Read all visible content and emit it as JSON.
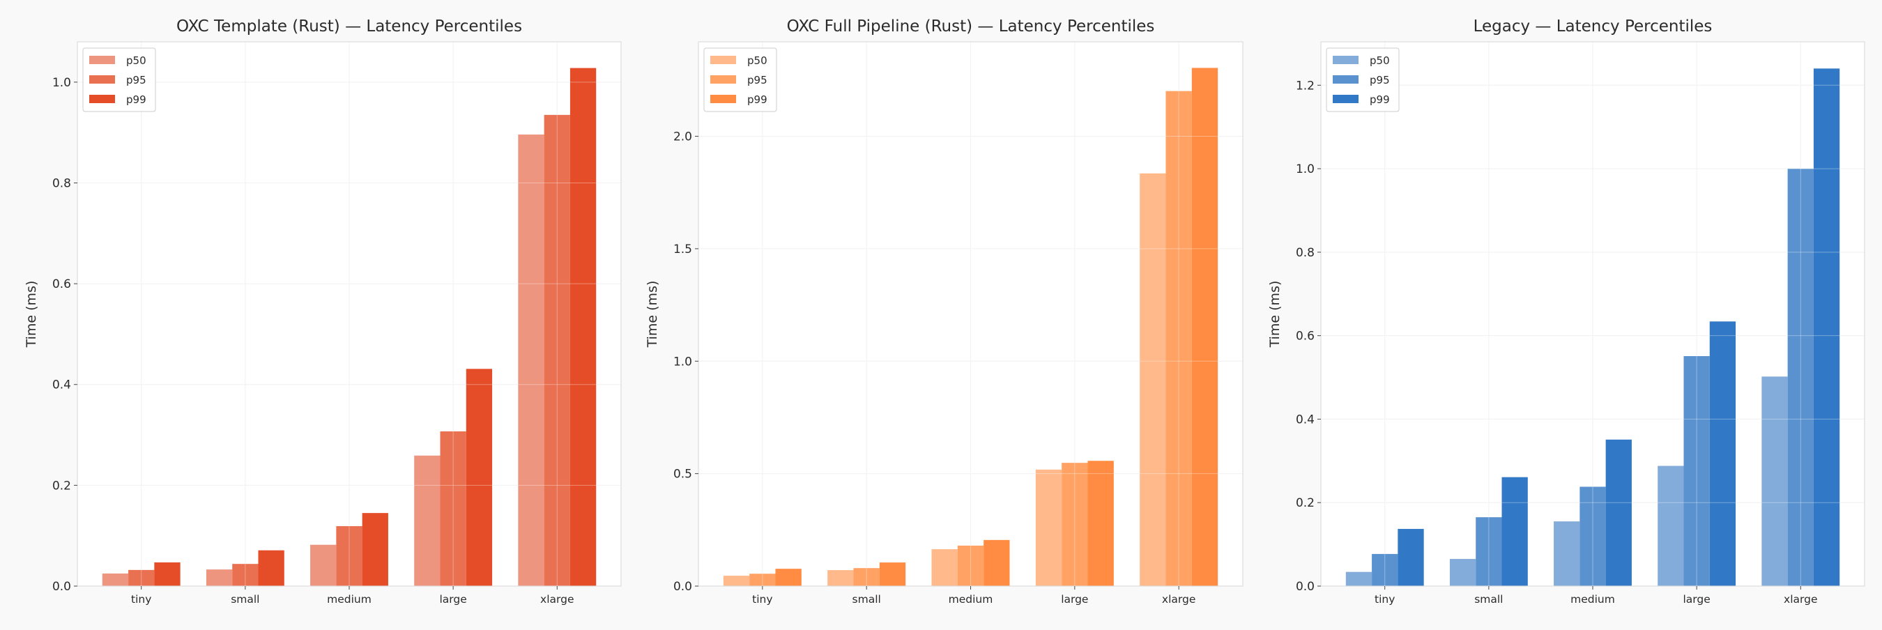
{
  "chart_data": [
    {
      "type": "bar",
      "title": "OXC Template (Rust) — Latency Percentiles",
      "xlabel": "",
      "ylabel": "Time (ms)",
      "categories": [
        "tiny",
        "small",
        "medium",
        "large",
        "xlarge"
      ],
      "ylim": [
        0,
        1.08
      ],
      "yticks": [
        0.0,
        0.2,
        0.4,
        0.6,
        0.8,
        1.0
      ],
      "ytick_labels": [
        "0.0",
        "0.2",
        "0.4",
        "0.6",
        "0.8",
        "1.0"
      ],
      "grid": true,
      "legend": "top-left",
      "series": [
        {
          "name": "p50",
          "color": "#EE9580",
          "values": [
            0.025,
            0.033,
            0.082,
            0.259,
            0.896
          ]
        },
        {
          "name": "p95",
          "color": "#EA7052",
          "values": [
            0.032,
            0.044,
            0.119,
            0.307,
            0.935
          ]
        },
        {
          "name": "p99",
          "color": "#E54D29",
          "values": [
            0.047,
            0.071,
            0.145,
            0.431,
            1.028
          ]
        }
      ]
    },
    {
      "type": "bar",
      "title": "OXC Full Pipeline (Rust) — Latency Percentiles",
      "xlabel": "",
      "ylabel": "Time (ms)",
      "categories": [
        "tiny",
        "small",
        "medium",
        "large",
        "xlarge"
      ],
      "ylim": [
        0,
        2.42
      ],
      "yticks": [
        0.0,
        0.5,
        1.0,
        1.5,
        2.0
      ],
      "ytick_labels": [
        "0.0",
        "0.5",
        "1.0",
        "1.5",
        "2.0"
      ],
      "grid": true,
      "legend": "top-left",
      "series": [
        {
          "name": "p50",
          "color": "#FFB98A",
          "values": [
            0.046,
            0.071,
            0.164,
            0.518,
            1.835
          ]
        },
        {
          "name": "p95",
          "color": "#FFA264",
          "values": [
            0.055,
            0.08,
            0.18,
            0.548,
            2.201
          ]
        },
        {
          "name": "p99",
          "color": "#FF8C42",
          "values": [
            0.077,
            0.105,
            0.205,
            0.557,
            2.304
          ]
        }
      ]
    },
    {
      "type": "bar",
      "title": "Legacy — Latency Percentiles",
      "xlabel": "",
      "ylabel": "Time (ms)",
      "categories": [
        "tiny",
        "small",
        "medium",
        "large",
        "xlarge"
      ],
      "ylim": [
        0,
        1.304
      ],
      "yticks": [
        0.0,
        0.2,
        0.4,
        0.6,
        0.8,
        1.0,
        1.2
      ],
      "ytick_labels": [
        "0.0",
        "0.2",
        "0.4",
        "0.6",
        "0.8",
        "1.0",
        "1.2"
      ],
      "grid": true,
      "legend": "top-left",
      "series": [
        {
          "name": "p50",
          "color": "#84ACDA",
          "values": [
            0.034,
            0.065,
            0.155,
            0.288,
            0.502
          ]
        },
        {
          "name": "p95",
          "color": "#5A92D0",
          "values": [
            0.077,
            0.165,
            0.238,
            0.551,
            1.0
          ]
        },
        {
          "name": "p99",
          "color": "#3178C6",
          "values": [
            0.137,
            0.261,
            0.351,
            0.634,
            1.24
          ]
        }
      ]
    }
  ]
}
